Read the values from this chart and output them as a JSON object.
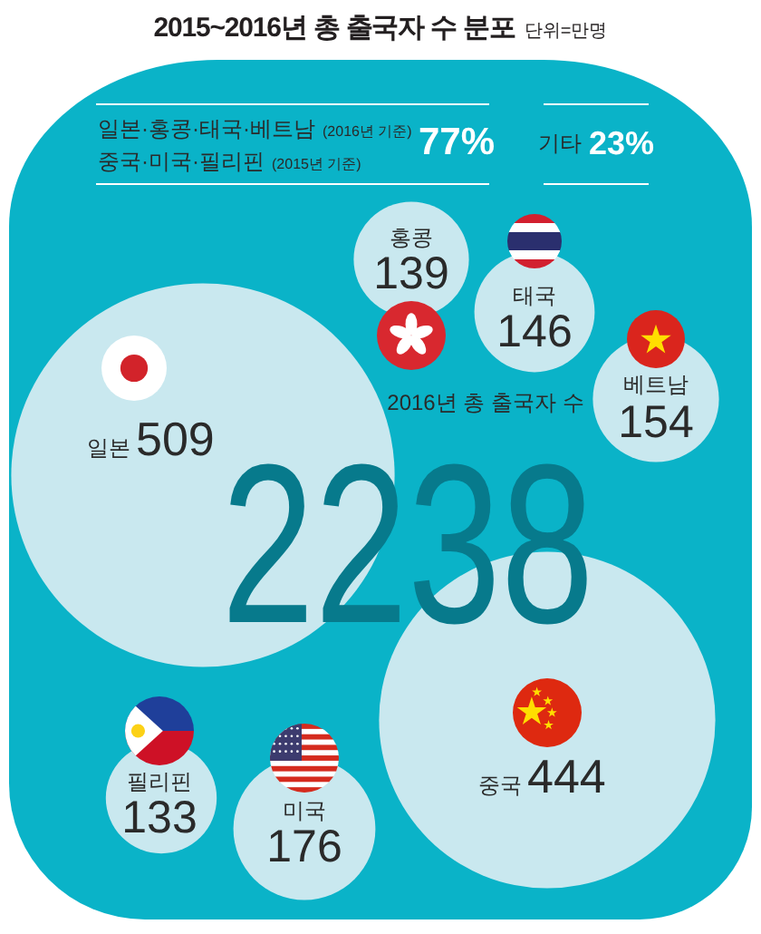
{
  "chart_data": {
    "type": "other",
    "title": "2015~2016년 총 출국자 수 분포",
    "subtitle": "단위=만명",
    "categories": [
      "일본",
      "홍콩",
      "태국",
      "베트남",
      "중국",
      "미국",
      "필리핀"
    ],
    "values": [
      509,
      139,
      146,
      154,
      444,
      176,
      133
    ],
    "color": "#c9e8ef",
    "data_labels": true,
    "annotations": [
      "일본·홍콩·태국·베트남",
      "(2016년 기준)",
      "중국·미국·필리핀",
      "(2015년 기준)",
      "77%",
      "기타",
      "23%",
      "2016년 총 출국자 수",
      "2238"
    ]
  }
}
